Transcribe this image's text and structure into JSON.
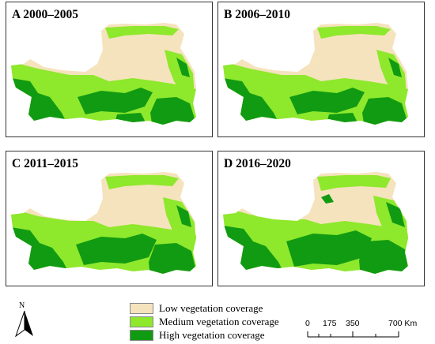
{
  "panels": [
    {
      "id": "a",
      "title": "A 2000–2005"
    },
    {
      "id": "b",
      "title": "B 2006–2010"
    },
    {
      "id": "c",
      "title": "C 2011–2015"
    },
    {
      "id": "d",
      "title": "D 2016–2020"
    }
  ],
  "north_arrow": {
    "letter": "N"
  },
  "legend": {
    "items": [
      {
        "label": "Low vegetation coverage",
        "color": "#f5e3bd"
      },
      {
        "label": "Medium vegetation coverage",
        "color": "#8ee82c"
      },
      {
        "label": "High vegetation coverage",
        "color": "#119b12"
      }
    ]
  },
  "scale_bar": {
    "labels": [
      "0",
      "175",
      "350",
      "700 Km"
    ]
  }
}
